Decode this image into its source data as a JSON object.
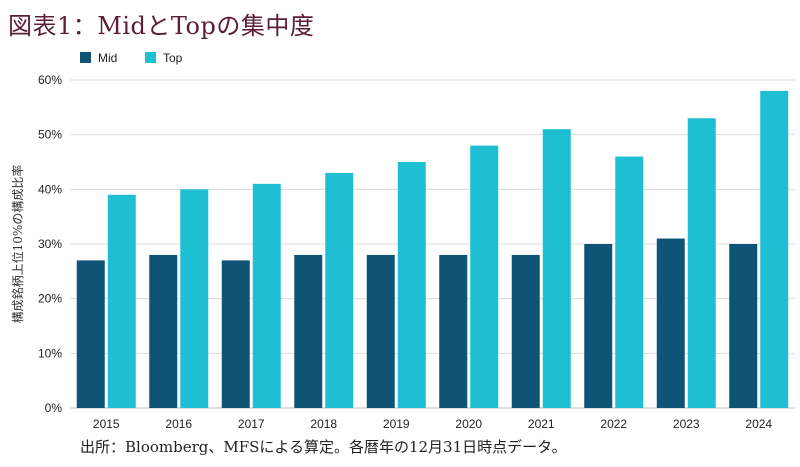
{
  "chart_data": {
    "type": "bar",
    "title": "図表1：MidとTopの集中度",
    "ylabel": "構成銘柄上位10%の構成比率",
    "xlabel": "",
    "categories": [
      "2015",
      "2016",
      "2017",
      "2018",
      "2019",
      "2020",
      "2021",
      "2022",
      "2023",
      "2024"
    ],
    "series": [
      {
        "name": "Mid",
        "color": "#0f5474",
        "values": [
          27,
          28,
          27,
          28,
          28,
          28,
          28,
          30,
          31,
          30
        ]
      },
      {
        "name": "Top",
        "color": "#1fbfd3",
        "values": [
          39,
          40,
          41,
          43,
          45,
          48,
          51,
          46,
          53,
          58
        ]
      }
    ],
    "ylim": [
      0,
      60
    ],
    "yticks": [
      0,
      10,
      20,
      30,
      40,
      50,
      60
    ],
    "ytick_suffix": "%",
    "grid": true,
    "legend_position": "top-left",
    "source_note": "出所：Bloomberg、MFSによる算定。各暦年の12月31日時点データ。"
  }
}
